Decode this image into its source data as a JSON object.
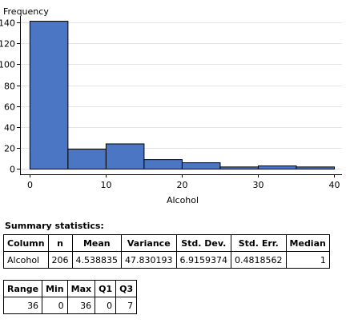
{
  "chart_data": {
    "type": "bar",
    "title": "",
    "xlabel": "Alcohol",
    "ylabel": "Frequency",
    "bins": [
      {
        "x0": 0,
        "x1": 5,
        "count": 141
      },
      {
        "x0": 5,
        "x1": 10,
        "count": 19
      },
      {
        "x0": 10,
        "x1": 15,
        "count": 24
      },
      {
        "x0": 15,
        "x1": 20,
        "count": 9
      },
      {
        "x0": 20,
        "x1": 25,
        "count": 6
      },
      {
        "x0": 25,
        "x1": 30,
        "count": 2
      },
      {
        "x0": 30,
        "x1": 35,
        "count": 3
      },
      {
        "x0": 35,
        "x1": 40,
        "count": 2
      }
    ],
    "xlim": [
      -1.3,
      41
    ],
    "ylim": [
      -5,
      146
    ],
    "x_ticks": [
      0,
      10,
      20,
      30,
      40
    ],
    "y_ticks": [
      0,
      20,
      40,
      60,
      80,
      100,
      120,
      140
    ],
    "grid": true,
    "bar_color": "#4a76c4",
    "bar_edge_color": "#000000"
  },
  "summary": {
    "title": "Summary statistics:",
    "headers": [
      "Column",
      "n",
      "Mean",
      "Variance",
      "Std. Dev.",
      "Std. Err.",
      "Median"
    ],
    "row": [
      "Alcohol",
      "206",
      "4.538835",
      "47.830193",
      "6.9159374",
      "0.4818562",
      "1"
    ]
  },
  "quantiles": {
    "headers": [
      "Range",
      "Min",
      "Max",
      "Q1",
      "Q3"
    ],
    "row": [
      "36",
      "0",
      "36",
      "0",
      "7"
    ]
  }
}
